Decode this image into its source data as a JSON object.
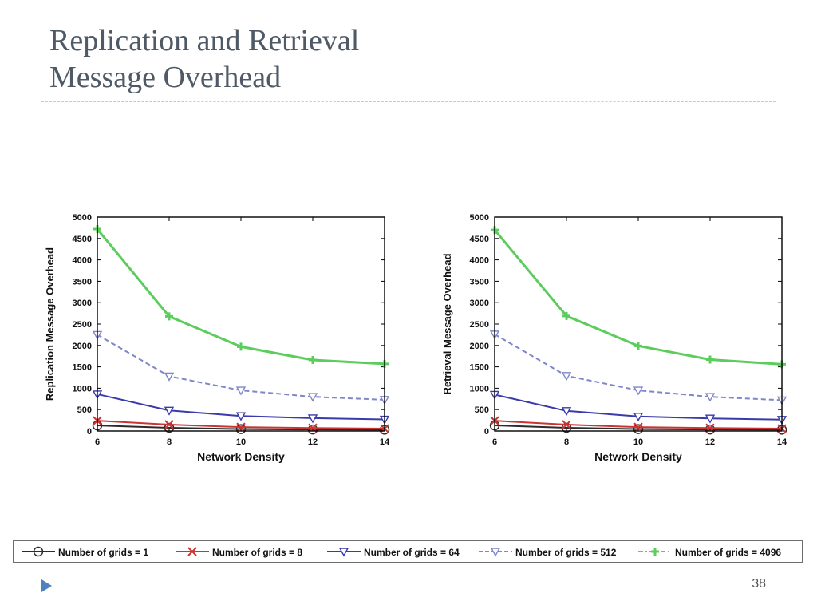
{
  "slide": {
    "title_line1": "Replication and Retrieval",
    "title_line2": "Message Overhead",
    "page_number": "38"
  },
  "chart_data": [
    {
      "type": "line",
      "xlabel": "Network Density",
      "ylabel": "Replication Message Overhead",
      "x": [
        6,
        8,
        10,
        12,
        14
      ],
      "xlim": [
        6,
        14
      ],
      "ylim": [
        0,
        5000
      ],
      "yticks": [
        0,
        500,
        1000,
        1500,
        2000,
        2500,
        3000,
        3500,
        4000,
        4500,
        5000
      ],
      "grid": false,
      "legend": "bottom",
      "series": [
        {
          "name": "Number of grids = 1",
          "values": [
            130,
            75,
            45,
            35,
            30
          ],
          "color": "#2b2b2b",
          "marker": "circle",
          "dash": "solid"
        },
        {
          "name": "Number of grids = 8",
          "values": [
            240,
            150,
            90,
            70,
            55
          ],
          "color": "#cc3333",
          "marker": "x",
          "dash": "solid"
        },
        {
          "name": "Number of grids = 64",
          "values": [
            860,
            480,
            350,
            300,
            270
          ],
          "color": "#3a3aaa",
          "marker": "triangle-down",
          "dash": "solid"
        },
        {
          "name": "Number of grids = 512",
          "values": [
            2250,
            1280,
            950,
            800,
            730
          ],
          "color": "#7f86c8",
          "marker": "triangle-down",
          "dash": "dashed"
        },
        {
          "name": "Number of grids = 4096",
          "values": [
            4720,
            2680,
            1970,
            1660,
            1570
          ],
          "color": "#5ccc5c",
          "marker": "plus",
          "dash": "solid"
        }
      ]
    },
    {
      "type": "line",
      "xlabel": "Network Density",
      "ylabel": "Retrieval Message Overhead",
      "x": [
        6,
        8,
        10,
        12,
        14
      ],
      "xlim": [
        6,
        14
      ],
      "ylim": [
        0,
        5000
      ],
      "yticks": [
        0,
        500,
        1000,
        1500,
        2000,
        2500,
        3000,
        3500,
        4000,
        4500,
        5000
      ],
      "grid": false,
      "legend": "bottom",
      "series": [
        {
          "name": "Number of grids = 1",
          "values": [
            130,
            75,
            45,
            35,
            30
          ],
          "color": "#2b2b2b",
          "marker": "circle",
          "dash": "solid"
        },
        {
          "name": "Number of grids = 8",
          "values": [
            240,
            150,
            90,
            70,
            55
          ],
          "color": "#cc3333",
          "marker": "x",
          "dash": "solid"
        },
        {
          "name": "Number of grids = 64",
          "values": [
            850,
            470,
            340,
            295,
            265
          ],
          "color": "#3a3aaa",
          "marker": "triangle-down",
          "dash": "solid"
        },
        {
          "name": "Number of grids = 512",
          "values": [
            2260,
            1290,
            950,
            800,
            720
          ],
          "color": "#7f86c8",
          "marker": "triangle-down",
          "dash": "dashed"
        },
        {
          "name": "Number of grids = 4096",
          "values": [
            4700,
            2690,
            1990,
            1670,
            1560
          ],
          "color": "#5ccc5c",
          "marker": "plus",
          "dash": "solid"
        }
      ]
    }
  ]
}
